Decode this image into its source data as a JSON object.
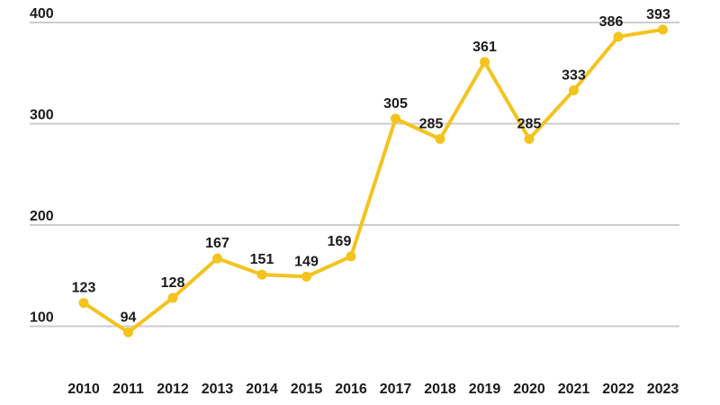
{
  "chart_data": {
    "type": "line",
    "title": "",
    "xlabel": "",
    "ylabel": "",
    "categories": [
      "2010",
      "2011",
      "2012",
      "2013",
      "2014",
      "2015",
      "2016",
      "2017",
      "2018",
      "2019",
      "2020",
      "2021",
      "2022",
      "2023"
    ],
    "series": [
      {
        "name": "values",
        "values": [
          123,
          94,
          128,
          167,
          151,
          149,
          169,
          305,
          285,
          361,
          285,
          333,
          386,
          393
        ]
      }
    ],
    "yticks": [
      100,
      200,
      300,
      400
    ],
    "ylim": [
      66,
      400
    ],
    "grid": true,
    "legend_position": "none",
    "data_labels_visible": true,
    "colors": {
      "line": "#F5C31E",
      "marker": "#F5C31E",
      "gridline": "#CCCCCC",
      "text": "#1A1A1A",
      "background": "#FFFFFF"
    }
  }
}
